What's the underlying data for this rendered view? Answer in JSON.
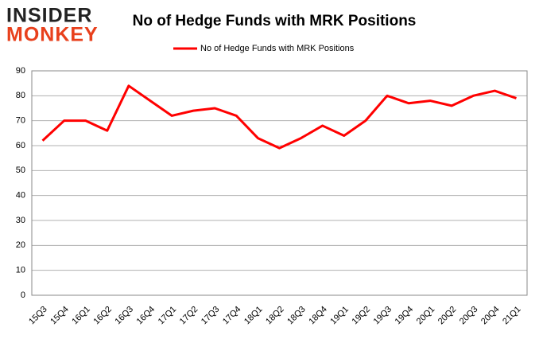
{
  "logo": [
    "INSIDER",
    "MONKEY"
  ],
  "chart_data": {
    "type": "line",
    "title": "No of Hedge Funds with MRK Positions",
    "categories": [
      "15Q3",
      "15Q4",
      "16Q1",
      "16Q2",
      "16Q3",
      "16Q4",
      "17Q1",
      "17Q2",
      "17Q3",
      "17Q4",
      "18Q1",
      "18Q2",
      "18Q3",
      "18Q4",
      "19Q1",
      "19Q2",
      "19Q3",
      "19Q4",
      "20Q1",
      "20Q2",
      "20Q3",
      "20Q4",
      "21Q1"
    ],
    "series": [
      {
        "name": "No of Hedge Funds with MRK Positions",
        "color": "#ff0000",
        "values": [
          62,
          70,
          70,
          66,
          84,
          78,
          72,
          74,
          75,
          72,
          63,
          59,
          63,
          68,
          64,
          70,
          80,
          77,
          78,
          76,
          80,
          82,
          79
        ]
      }
    ],
    "ylim": [
      0,
      90
    ],
    "yticks": [
      0,
      10,
      20,
      30,
      40,
      50,
      60,
      70,
      80,
      90
    ],
    "grid": true,
    "legend": "top"
  }
}
